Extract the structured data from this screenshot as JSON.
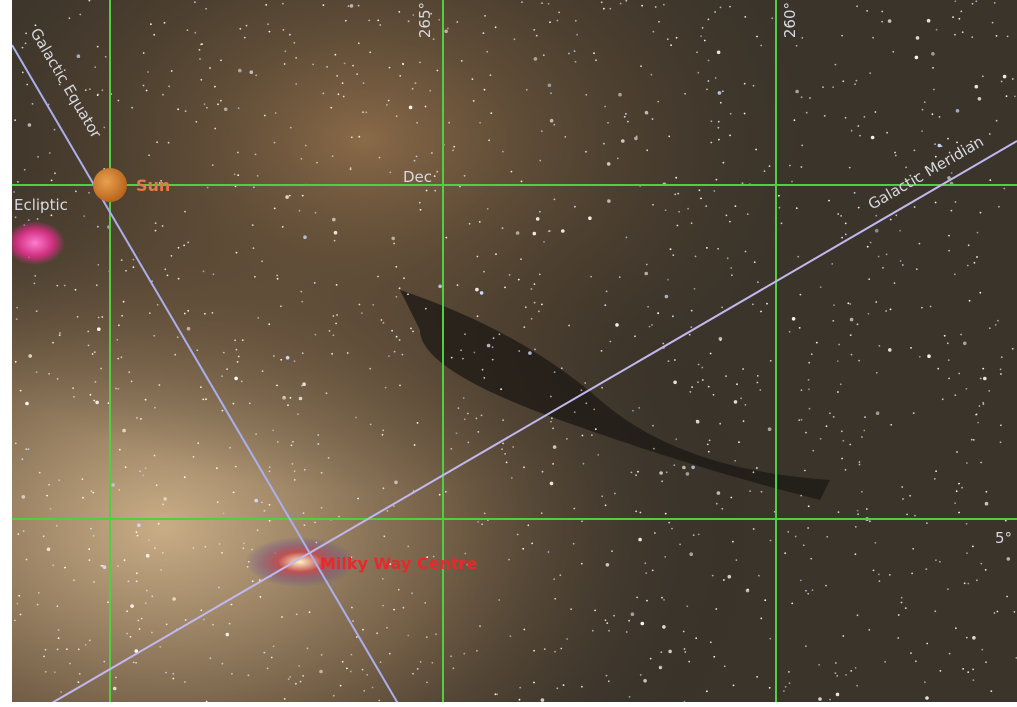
{
  "grid_labels": {
    "ra_left": "265°",
    "ra_right": "260°",
    "dec": "Dec",
    "dec_right": "5°"
  },
  "lines": {
    "galactic_equator": "Galactic Equator",
    "galactic_meridian": "Galactic Meridian",
    "ecliptic": "Ecliptic"
  },
  "objects": {
    "sun": "Sun",
    "milky_way_centre": "Milky Way Centre"
  }
}
